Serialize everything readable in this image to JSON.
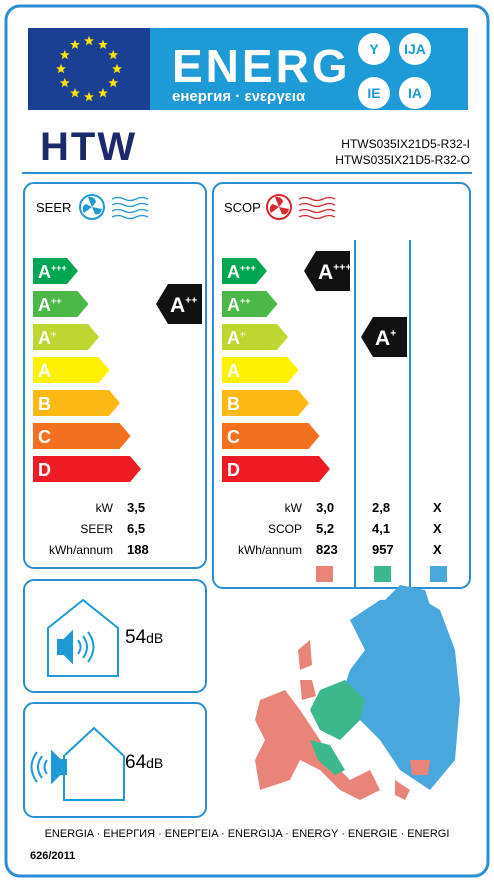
{
  "header": {
    "title": "ENERG",
    "subtitle": "енергия · ενεργεια",
    "suffixes": [
      "Y",
      "IJA",
      "IE",
      "IA"
    ]
  },
  "supplier": "HTW",
  "models": [
    "HTWS035IX21D5-R32-I",
    "HTWS035IX21D5-R32-O"
  ],
  "classes": [
    {
      "letter": "A",
      "sup": "+++"
    },
    {
      "letter": "A",
      "sup": "++"
    },
    {
      "letter": "A",
      "sup": "+"
    },
    {
      "letter": "A",
      "sup": ""
    },
    {
      "letter": "B",
      "sup": ""
    },
    {
      "letter": "C",
      "sup": ""
    },
    {
      "letter": "D",
      "sup": ""
    }
  ],
  "cooling": {
    "label": "SEER",
    "rating": {
      "letter": "A",
      "sup": "++"
    },
    "rows": [
      {
        "label": "kW",
        "value": "3,5"
      },
      {
        "label": "SEER",
        "value": "6,5"
      },
      {
        "label": "kWh/annum",
        "value": "188"
      }
    ]
  },
  "heating": {
    "label": "SCOP",
    "ratings": [
      {
        "letter": "A",
        "sup": "+++"
      },
      {
        "letter": "A",
        "sup": "+"
      }
    ],
    "rows": [
      {
        "label": "kW",
        "values": [
          "3,0",
          "2,8",
          "X"
        ]
      },
      {
        "label": "SCOP",
        "values": [
          "5,2",
          "4,1",
          "X"
        ]
      },
      {
        "label": "kWh/annum",
        "values": [
          "823",
          "957",
          "X"
        ]
      }
    ]
  },
  "noise": [
    {
      "value": "54",
      "unit": "dB"
    },
    {
      "value": "64",
      "unit": "dB"
    }
  ],
  "footer": {
    "languages": "ENERGIA · ЕНЕРГИЯ · ΕΝΕΡΓΕΙΑ · ENERGIJA · ENERGY · ENERGIE · ENERGI",
    "regulation": "626/2011"
  }
}
